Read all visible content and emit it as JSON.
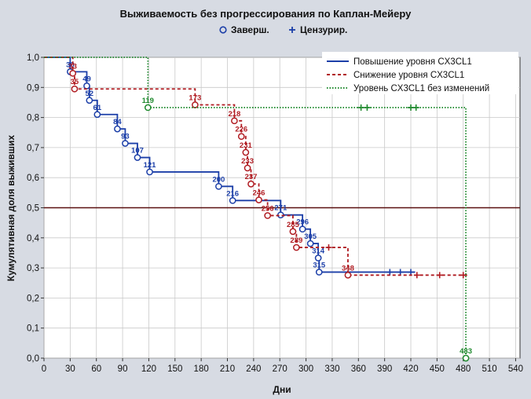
{
  "chart_data": {
    "type": "line",
    "title": "Выживаемость без прогрессирования по Каплан-Мейеру",
    "marker_legend": [
      {
        "symbol": "circle",
        "label": "Заверш."
      },
      {
        "symbol": "plus",
        "label": "Цензурир."
      }
    ],
    "xlabel": "Дни",
    "ylabel": "Кумулятивная доля выживших",
    "xlim": [
      0,
      545
    ],
    "ylim": [
      0,
      1.0
    ],
    "xticks": [
      0,
      30,
      60,
      90,
      120,
      150,
      180,
      210,
      240,
      270,
      300,
      330,
      360,
      390,
      420,
      450,
      480,
      510,
      540
    ],
    "xtick_labels": [
      "0",
      "30",
      "60",
      "90",
      "120",
      "150",
      "180",
      "210",
      "240",
      "270",
      "300",
      "330",
      "360",
      "390",
      "420",
      "450",
      "480",
      "510",
      "540"
    ],
    "yticks": [
      0,
      0.1,
      0.2,
      0.3,
      0.4,
      0.5,
      0.6,
      0.7,
      0.8,
      0.9,
      1.0
    ],
    "ytick_labels": [
      "0,0",
      "0,1",
      "0,2",
      "0,3",
      "0,4",
      "0,5",
      "0,6",
      "0,7",
      "0,8",
      "0,9",
      "1,0"
    ],
    "reference_line_y": 0.5,
    "legend_placement": "top-right",
    "series": [
      {
        "name": "Повышение уровня CX3CL1",
        "color": "#1c3fa8",
        "dash": "solid",
        "steps": [
          [
            0,
            1.0
          ],
          [
            30,
            0.952
          ],
          [
            49,
            0.905
          ],
          [
            52,
            0.857
          ],
          [
            61,
            0.81
          ],
          [
            84,
            0.762
          ],
          [
            93,
            0.714
          ],
          [
            107,
            0.667
          ],
          [
            121,
            0.619
          ],
          [
            200,
            0.571
          ],
          [
            216,
            0.524
          ],
          [
            271,
            0.476
          ],
          [
            296,
            0.429
          ],
          [
            305,
            0.381
          ],
          [
            314,
            0.333
          ],
          [
            315,
            0.286
          ],
          [
            425,
            0.286
          ]
        ],
        "events": [
          {
            "x": 30,
            "y": 0.952,
            "label": "30"
          },
          {
            "x": 49,
            "y": 0.905,
            "label": "49"
          },
          {
            "x": 52,
            "y": 0.857,
            "label": "52"
          },
          {
            "x": 61,
            "y": 0.81,
            "label": "61"
          },
          {
            "x": 84,
            "y": 0.762,
            "label": "84"
          },
          {
            "x": 93,
            "y": 0.714,
            "label": "93"
          },
          {
            "x": 107,
            "y": 0.667,
            "label": "107"
          },
          {
            "x": 121,
            "y": 0.619,
            "label": "121"
          },
          {
            "x": 200,
            "y": 0.571,
            "label": "200"
          },
          {
            "x": 216,
            "y": 0.524,
            "label": "216"
          },
          {
            "x": 271,
            "y": 0.476,
            "label": "271"
          },
          {
            "x": 296,
            "y": 0.429,
            "label": "296"
          },
          {
            "x": 305,
            "y": 0.381,
            "label": "305"
          },
          {
            "x": 314,
            "y": 0.333,
            "label": "314"
          },
          {
            "x": 315,
            "y": 0.286,
            "label": "315"
          }
        ],
        "censored": [
          [
            396,
            0.286
          ],
          [
            408,
            0.286
          ],
          [
            420,
            0.286
          ]
        ]
      },
      {
        "name": "Снижение уровня CX3CL1",
        "color": "#b01c22",
        "dash": "dashed",
        "steps": [
          [
            0,
            1.0
          ],
          [
            33,
            0.947
          ],
          [
            35,
            0.895
          ],
          [
            173,
            0.842
          ],
          [
            218,
            0.789
          ],
          [
            226,
            0.737
          ],
          [
            231,
            0.684
          ],
          [
            233,
            0.632
          ],
          [
            237,
            0.579
          ],
          [
            246,
            0.526
          ],
          [
            256,
            0.474
          ],
          [
            285,
            0.421
          ],
          [
            289,
            0.368
          ],
          [
            330,
            0.368
          ],
          [
            330,
            0.368
          ],
          [
            348,
            0.276
          ],
          [
            485,
            0.276
          ]
        ],
        "events": [
          {
            "x": 33,
            "y": 0.947,
            "label": "33"
          },
          {
            "x": 35,
            "y": 0.895,
            "label": "35"
          },
          {
            "x": 173,
            "y": 0.842,
            "label": "173"
          },
          {
            "x": 218,
            "y": 0.789,
            "label": "218"
          },
          {
            "x": 226,
            "y": 0.737,
            "label": "226"
          },
          {
            "x": 231,
            "y": 0.684,
            "label": "231"
          },
          {
            "x": 233,
            "y": 0.632,
            "label": "233"
          },
          {
            "x": 237,
            "y": 0.579,
            "label": "237"
          },
          {
            "x": 246,
            "y": 0.526,
            "label": "246"
          },
          {
            "x": 256,
            "y": 0.474,
            "label": "256"
          },
          {
            "x": 285,
            "y": 0.421,
            "label": "285"
          },
          {
            "x": 289,
            "y": 0.368,
            "label": "289"
          },
          {
            "x": 348,
            "y": 0.276,
            "label": "348"
          }
        ],
        "censored": [
          [
            326,
            0.368
          ],
          [
            427,
            0.276
          ],
          [
            453,
            0.276
          ],
          [
            480,
            0.276
          ]
        ]
      },
      {
        "name": "Уровень CX3CL1 без изменений",
        "color": "#1f8a2e",
        "dash": "dotted",
        "steps": [
          [
            0,
            1.0
          ],
          [
            119,
            1.0
          ],
          [
            119,
            0.833
          ],
          [
            483,
            0.833
          ],
          [
            483,
            0.0
          ]
        ],
        "events": [
          {
            "x": 119,
            "y": 0.833,
            "label": "119"
          },
          {
            "x": 483,
            "y": 0.0,
            "label": "483"
          }
        ],
        "censored": [
          [
            363,
            0.833
          ],
          [
            370,
            0.833
          ],
          [
            420,
            0.833
          ],
          [
            426,
            0.833
          ]
        ]
      }
    ]
  }
}
